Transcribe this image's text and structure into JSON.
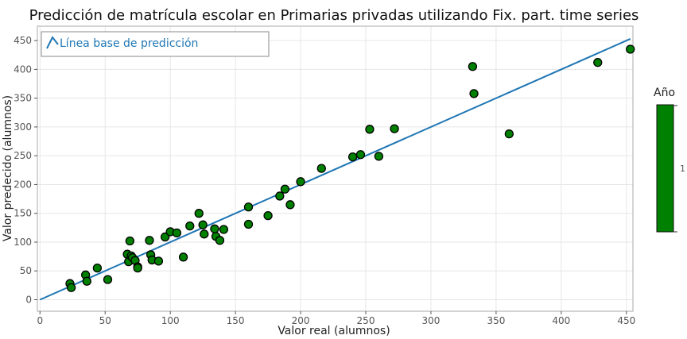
{
  "chart_data": {
    "type": "scatter",
    "title": "Predicción de matrícula escolar en Primarias privadas utilizando Fix. part. time series",
    "xlabel": "Valor real (alumnos)",
    "ylabel": "Valor predecido (alumnos)",
    "xlim": [
      -2,
      455
    ],
    "ylim": [
      -20,
      475
    ],
    "x_ticks": [
      0,
      50,
      100,
      150,
      200,
      250,
      300,
      350,
      400,
      450
    ],
    "y_ticks": [
      0,
      50,
      100,
      150,
      200,
      250,
      300,
      350,
      400,
      450
    ],
    "grid": true,
    "series": [
      {
        "name": "Línea base de predicción",
        "type": "line",
        "color": "#1f77b4",
        "x": [
          0,
          453
        ],
        "y": [
          0,
          453
        ]
      },
      {
        "type": "scatter",
        "color": "#008000",
        "x": [
          23,
          24,
          35,
          36,
          44,
          52,
          67,
          68,
          69,
          70,
          71,
          73,
          75,
          75,
          84,
          85,
          86,
          91,
          96,
          100,
          105,
          110,
          115,
          122,
          125,
          126,
          134,
          135,
          138,
          141,
          160,
          160,
          175,
          184,
          188,
          192,
          200,
          216,
          240,
          246,
          253,
          260,
          272,
          332,
          333,
          360,
          428,
          453
        ],
        "y": [
          28,
          21,
          43,
          32,
          55,
          35,
          79,
          66,
          102,
          76,
          73,
          68,
          57,
          55,
          103,
          78,
          69,
          67,
          109,
          118,
          116,
          74,
          128,
          150,
          130,
          114,
          123,
          110,
          103,
          122,
          161,
          131,
          146,
          180,
          192,
          165,
          205,
          228,
          248,
          252,
          296,
          249,
          297,
          405,
          358,
          288,
          412,
          435
        ]
      }
    ],
    "legend": {
      "label": "Línea base de predicción",
      "position": "top-left"
    },
    "colorbar": {
      "title": "Año",
      "tick_label": "1",
      "color": "#008000"
    }
  }
}
